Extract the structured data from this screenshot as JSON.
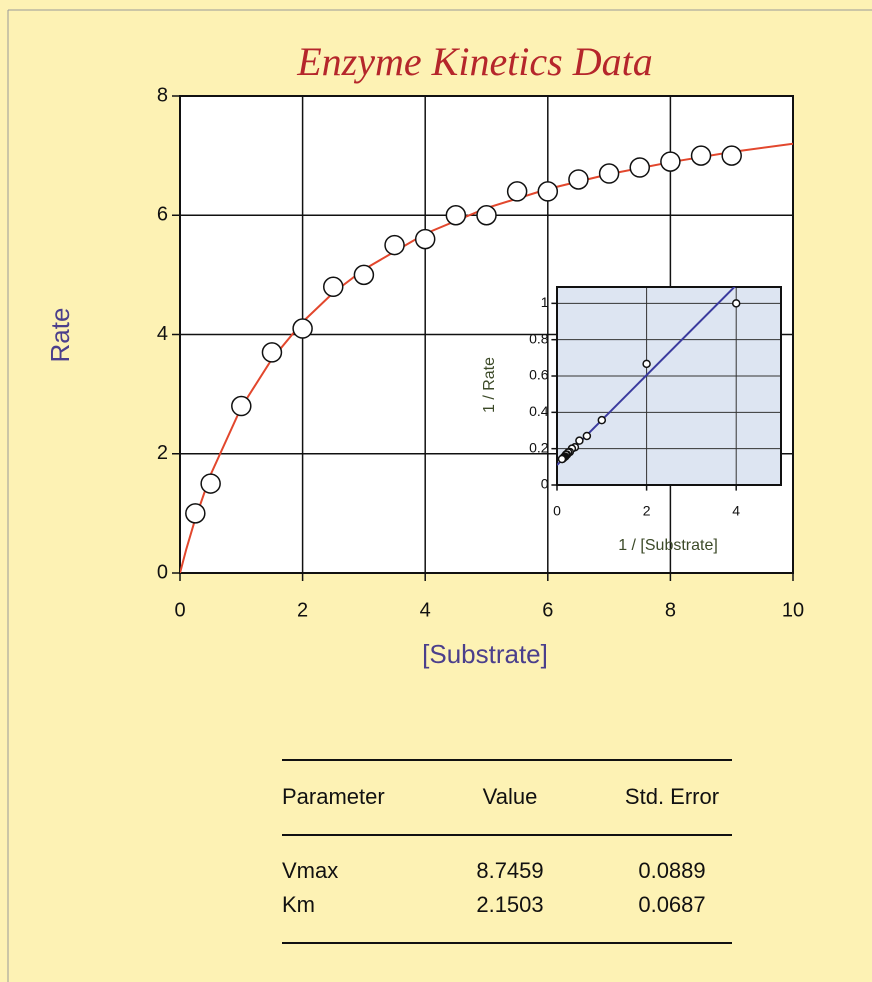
{
  "chart_data": [
    {
      "type": "scatter",
      "title": "Enzyme Kinetics Data",
      "x_label": "[Substrate]",
      "y_label": "Rate",
      "x": [
        0.25,
        0.5,
        1,
        1.5,
        2,
        2.5,
        3,
        3.5,
        4,
        4.5,
        5,
        5.5,
        6,
        6.5,
        7,
        7.5,
        8,
        8.5,
        9
      ],
      "values": [
        1.0,
        1.5,
        2.8,
        3.7,
        4.1,
        4.8,
        5.0,
        5.5,
        5.6,
        6.0,
        6.0,
        6.4,
        6.4,
        6.6,
        6.7,
        6.8,
        6.9,
        7.0,
        7.0
      ],
      "fit": {
        "color": "#e2472d",
        "x": [
          0,
          0.1,
          0.25,
          0.5,
          1,
          1.5,
          2,
          2.5,
          3,
          4,
          5,
          6,
          7,
          8,
          9,
          10
        ],
        "values": [
          0,
          0.39,
          0.91,
          1.65,
          2.78,
          3.59,
          4.21,
          4.7,
          5.09,
          5.69,
          6.12,
          6.44,
          6.69,
          6.89,
          7.06,
          7.2
        ]
      },
      "xlim": [
        0,
        10
      ],
      "xticks": [
        0,
        2,
        4,
        6,
        8,
        10
      ],
      "ylim": [
        0,
        8
      ],
      "yticks": [
        0,
        2,
        4,
        6,
        8
      ],
      "grid": true
    },
    {
      "type": "scatter",
      "x_label": "1 / [Substrate]",
      "y_label": "1 / Rate",
      "x": [
        4,
        2,
        1,
        0.667,
        0.5,
        0.4,
        0.333,
        0.286,
        0.25,
        0.222,
        0.2,
        0.182,
        0.167,
        0.154,
        0.143,
        0.133,
        0.125,
        0.118,
        0.111
      ],
      "values": [
        1.0,
        0.667,
        0.357,
        0.27,
        0.244,
        0.208,
        0.2,
        0.182,
        0.179,
        0.167,
        0.167,
        0.156,
        0.156,
        0.152,
        0.149,
        0.147,
        0.145,
        0.143,
        0.143
      ],
      "fit": {
        "color": "#3b3b9e",
        "x": [
          0,
          4
        ],
        "values": [
          0.11,
          1.1
        ]
      },
      "xlim": [
        0,
        5
      ],
      "xticks": [
        0,
        2,
        4
      ],
      "ylim": [
        0,
        1.09
      ],
      "yticks": [
        0,
        0.2,
        0.4,
        0.6,
        0.8,
        1
      ],
      "grid": true
    }
  ],
  "table": {
    "columns": [
      "Parameter",
      "Value",
      "Std. Error"
    ],
    "rows": [
      [
        "Vmax",
        "8.7459",
        "0.0889"
      ],
      [
        "Km",
        "2.1503",
        "0.0687"
      ]
    ]
  }
}
